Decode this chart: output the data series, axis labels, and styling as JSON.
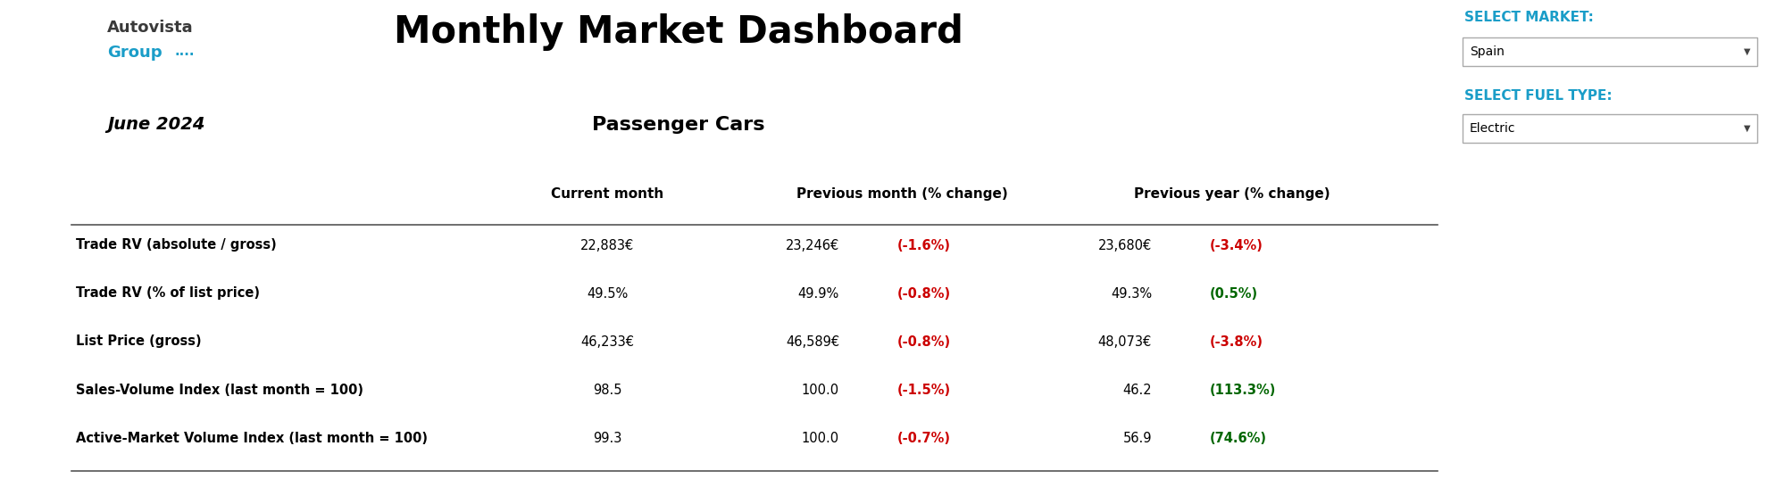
{
  "title": "Monthly Market Dashboard",
  "date": "June 2024",
  "vehicle_type": "Passenger Cars",
  "select_market_label": "SELECT MARKET:",
  "select_market_value": "Spain",
  "select_fuel_label": "SELECT FUEL TYPE:",
  "select_fuel_value": "Electric",
  "col_headers": [
    "Current month",
    "Previous month (% change)",
    "Previous year (% change)"
  ],
  "rows": [
    {
      "label": "Trade RV (absolute / gross)",
      "current": "22,883€",
      "prev_val": "23,246€",
      "prev_pct": "(-1.6%)",
      "prev_pct_color": "#cc0000",
      "year_val": "23,680€",
      "year_pct": "(-3.4%)",
      "year_pct_color": "#cc0000"
    },
    {
      "label": "Trade RV (% of list price)",
      "current": "49.5%",
      "prev_val": "49.9%",
      "prev_pct": "(-0.8%)",
      "prev_pct_color": "#cc0000",
      "year_val": "49.3%",
      "year_pct": "(0.5%)",
      "year_pct_color": "#006600"
    },
    {
      "label": "List Price (gross)",
      "current": "46,233€",
      "prev_val": "46,589€",
      "prev_pct": "(-0.8%)",
      "prev_pct_color": "#cc0000",
      "year_val": "48,073€",
      "year_pct": "(-3.8%)",
      "year_pct_color": "#cc0000"
    },
    {
      "label": "Sales-Volume Index (last month = 100)",
      "current": "98.5",
      "prev_val": "100.0",
      "prev_pct": "(-1.5%)",
      "prev_pct_color": "#cc0000",
      "year_val": "46.2",
      "year_pct": "(113.3%)",
      "year_pct_color": "#006600"
    },
    {
      "label": "Active-Market Volume Index (last month = 100)",
      "current": "99.3",
      "prev_val": "100.0",
      "prev_pct": "(-0.7%)",
      "prev_pct_color": "#cc0000",
      "year_val": "56.9",
      "year_pct": "(74.6%)",
      "year_pct_color": "#006600"
    }
  ],
  "bg_color": "#ffffff",
  "cyan_color": "#1a9dc8",
  "dark_gray": "#3a3a3a",
  "select_cyan": "#1a9dc8",
  "logo_autovista_color": "#3a3a3a",
  "logo_group_color": "#1a9dc8"
}
